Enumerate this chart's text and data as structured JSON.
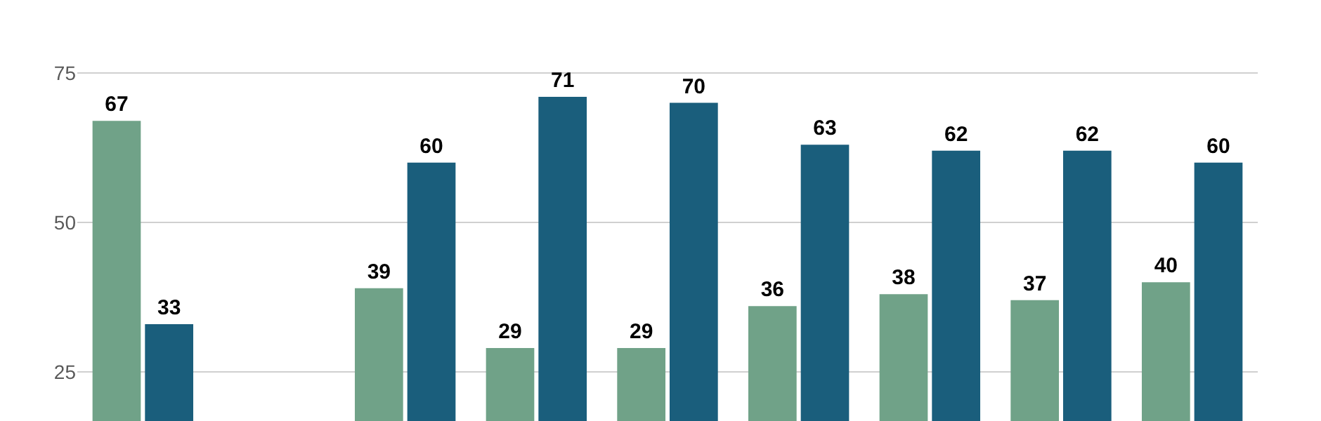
{
  "chart_data": {
    "type": "bar",
    "categories": [
      null,
      null,
      null,
      null,
      null,
      null,
      null,
      null,
      null
    ],
    "series": [
      {
        "color": "#70a288",
        "values": [
          67,
          null,
          39,
          29,
          29,
          36,
          38,
          37,
          40
        ]
      },
      {
        "color": "#1a5e7c",
        "values": [
          33,
          null,
          60,
          71,
          70,
          63,
          62,
          62,
          60
        ]
      }
    ],
    "ylim": [
      16.8,
      87.2
    ],
    "yticks": [
      25,
      50,
      75
    ],
    "grid": "y",
    "data_labels": true,
    "tick_labels": "y"
  }
}
